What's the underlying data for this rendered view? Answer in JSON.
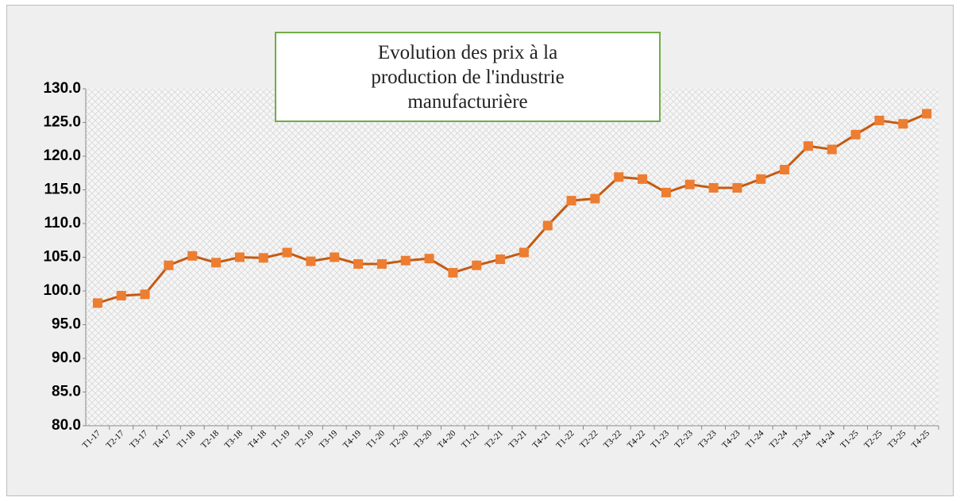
{
  "chart_data": {
    "type": "line",
    "title": "Evolution des prix à la production de l'industrie manufacturière",
    "categories": [
      "T1-17",
      "T2-17",
      "T3-17",
      "T4-17",
      "T1-18",
      "T2-18",
      "T3-18",
      "T4-18",
      "T1-19",
      "T2-19",
      "T3-19",
      "T4-19",
      "T1-20",
      "T2-20",
      "T3-20",
      "T4-20",
      "T1-21",
      "T2-21",
      "T3-21",
      "T4-21",
      "T1-22",
      "T2-22",
      "T3-22",
      "T4-22",
      "T1-23",
      "T2-23",
      "T3-23",
      "T4-23",
      "T1-24",
      "T2-24",
      "T3-24",
      "T4-24",
      "T1-25",
      "T2-25",
      "T3-25",
      "T4-25"
    ],
    "values": [
      98.2,
      99.3,
      99.5,
      103.8,
      105.2,
      104.2,
      105.0,
      104.9,
      105.7,
      104.4,
      105.0,
      104.0,
      104.0,
      104.5,
      104.8,
      102.7,
      103.8,
      104.7,
      105.7,
      109.7,
      113.4,
      113.7,
      116.9,
      116.6,
      114.6,
      115.8,
      115.3,
      115.3,
      116.6,
      118.0,
      121.5,
      121.0,
      123.2,
      125.3,
      124.8,
      126.3
    ],
    "color": "#c55a11",
    "marker_color": "#ed7d31",
    "ylim": [
      80,
      130
    ],
    "yticks": [
      {
        "value": 80,
        "label": "80.0"
      },
      {
        "value": 85,
        "label": "85.0"
      },
      {
        "value": 90,
        "label": "90.0"
      },
      {
        "value": 95,
        "label": "95.0"
      },
      {
        "value": 100,
        "label": "100.0"
      },
      {
        "value": 105,
        "label": "105.0"
      },
      {
        "value": 110,
        "label": "110.0"
      },
      {
        "value": 115,
        "label": "115.0"
      },
      {
        "value": 120,
        "label": "120.0"
      },
      {
        "value": 125,
        "label": "125.0"
      },
      {
        "value": 130,
        "label": "130.0"
      }
    ]
  }
}
